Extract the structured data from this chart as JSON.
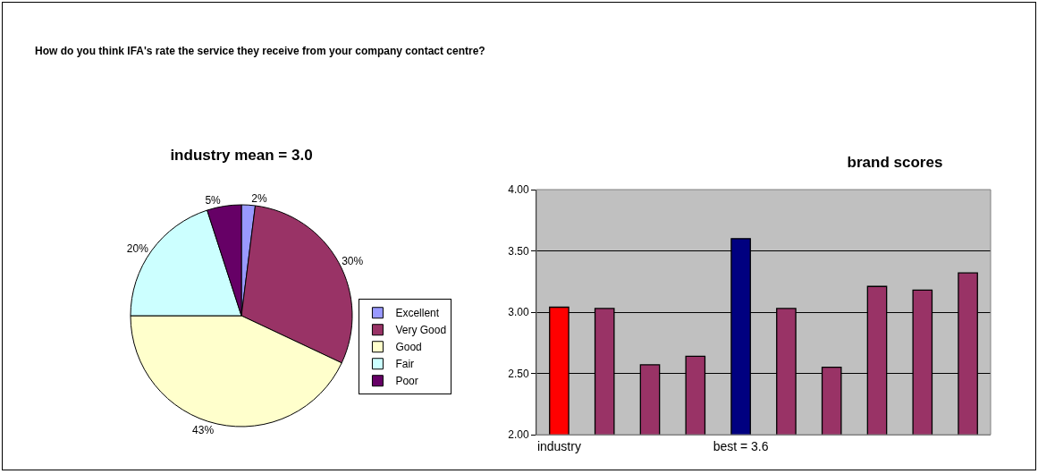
{
  "chart_data": [
    {
      "type": "pie",
      "title": "How do you think IFA's rate the service they receive from your company contact centre?",
      "subtitle": "industry mean = 3.0",
      "categories": [
        "Excellent",
        "Very Good",
        "Good",
        "Fair",
        "Poor"
      ],
      "values": [
        2,
        30,
        43,
        20,
        5
      ],
      "value_labels": [
        "2%",
        "30%",
        "43%",
        "20%",
        "5%"
      ],
      "colors": [
        "#9999ff",
        "#993366",
        "#ffffcc",
        "#ccffff",
        "#660066"
      ],
      "legend": "right"
    },
    {
      "type": "bar",
      "title": "brand scores",
      "categories": [
        "industry",
        null,
        null,
        null,
        "best = 3.6",
        null,
        null,
        null,
        null,
        null
      ],
      "values": [
        3.04,
        3.03,
        2.57,
        2.64,
        3.6,
        3.03,
        2.55,
        3.21,
        3.18,
        3.32
      ],
      "colors": [
        "#ff0000",
        "#993366",
        "#993366",
        "#993366",
        "#000080",
        "#993366",
        "#993366",
        "#993366",
        "#993366",
        "#993366"
      ],
      "ylim": [
        2,
        4
      ],
      "yticks": [
        {
          "value": 2,
          "label": "2.00"
        },
        {
          "value": 2.5,
          "label": "2.50"
        },
        {
          "value": 3,
          "label": "3.00"
        },
        {
          "value": 3.5,
          "label": "3.50"
        },
        {
          "value": 4,
          "label": "4.00"
        }
      ],
      "grid": "y",
      "legend": false
    }
  ]
}
